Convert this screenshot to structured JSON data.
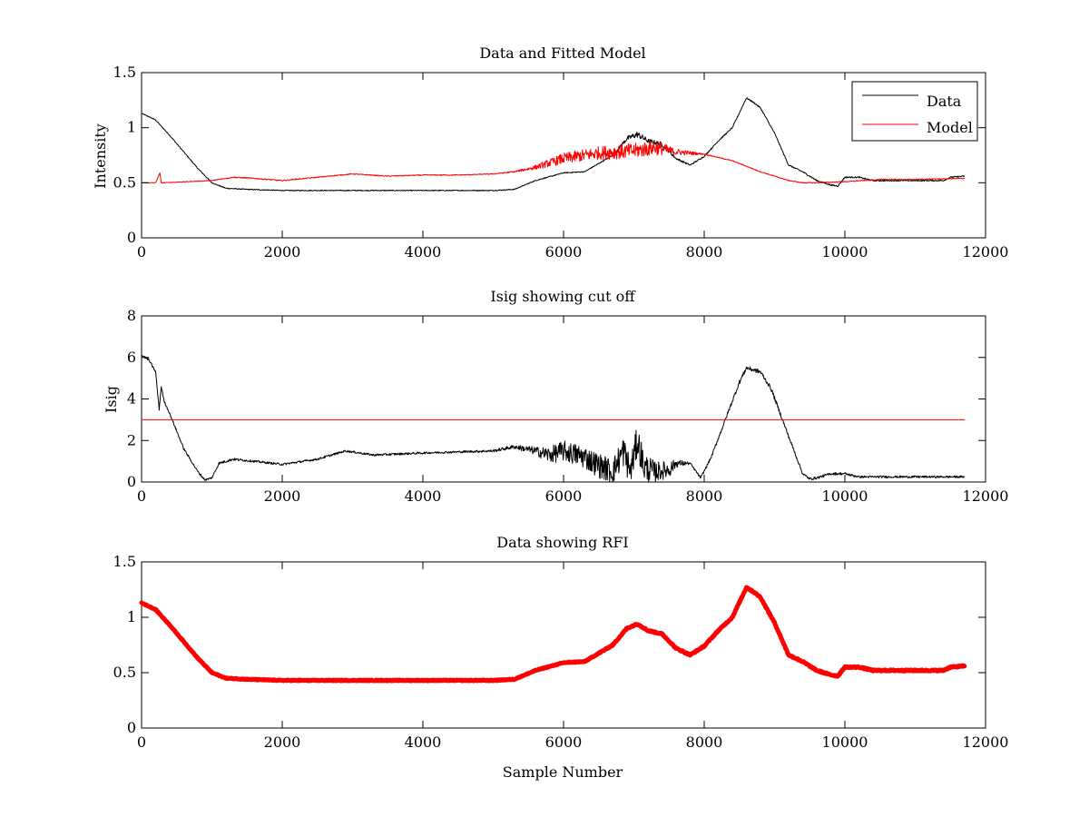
{
  "chart_data": [
    {
      "type": "line",
      "title": "Data and Fitted Model",
      "xlabel": "",
      "ylabel": "Intensity",
      "xlim": [
        0,
        12000
      ],
      "ylim": [
        0,
        1.5
      ],
      "xticks": [
        0,
        2000,
        4000,
        6000,
        8000,
        10000,
        12000
      ],
      "yticks": [
        0,
        0.5,
        1,
        1.5
      ],
      "xtick_labels": [
        "0",
        "2000",
        "4000",
        "6000",
        "8000",
        "10000",
        "12000"
      ],
      "ytick_labels": [
        "0",
        "0.5",
        "1",
        "1.5"
      ],
      "legend": {
        "placement": "top-right",
        "entries": [
          "Data",
          "Model"
        ]
      },
      "grid": false,
      "series": [
        {
          "name": "Data",
          "color": "#000000",
          "x": [
            0,
            200,
            400,
            600,
            800,
            1000,
            1200,
            1500,
            2000,
            3000,
            4000,
            5000,
            5300,
            5600,
            6000,
            6300,
            6700,
            6900,
            7050,
            7200,
            7400,
            7600,
            7800,
            8000,
            8200,
            8400,
            8600,
            8700,
            8800,
            9000,
            9200,
            9400,
            9600,
            9800,
            9900,
            10000,
            10200,
            10400,
            11000,
            11400,
            11500,
            11700
          ],
          "y": [
            1.13,
            1.07,
            0.93,
            0.78,
            0.63,
            0.5,
            0.45,
            0.44,
            0.43,
            0.43,
            0.43,
            0.43,
            0.44,
            0.52,
            0.59,
            0.6,
            0.75,
            0.9,
            0.94,
            0.88,
            0.85,
            0.72,
            0.66,
            0.74,
            0.88,
            1.0,
            1.27,
            1.23,
            1.18,
            0.95,
            0.66,
            0.6,
            0.52,
            0.48,
            0.47,
            0.55,
            0.55,
            0.52,
            0.52,
            0.52,
            0.55,
            0.56
          ],
          "noise": [
            0.004,
            0.004,
            0.004,
            0.004,
            0.004,
            0.004,
            0.004,
            0.004,
            0.004,
            0.004,
            0.004,
            0.004,
            0.004,
            0.004,
            0.004,
            0.004,
            0.006,
            0.02,
            0.03,
            0.02,
            0.02,
            0.01,
            0.006,
            0.006,
            0.006,
            0.006,
            0.006,
            0.006,
            0.006,
            0.006,
            0.006,
            0.006,
            0.006,
            0.006,
            0.006,
            0.006,
            0.006,
            0.006,
            0.006,
            0.006,
            0.006,
            0.006
          ]
        },
        {
          "name": "Model",
          "color": "#ff0000",
          "x": [
            0,
            200,
            260,
            280,
            300,
            1000,
            1300,
            1600,
            2000,
            2500,
            3000,
            3500,
            4000,
            4500,
            5000,
            5300,
            5600,
            6000,
            6500,
            7000,
            7300,
            7600,
            8000,
            8400,
            8800,
            9200,
            9400,
            9600,
            10000,
            10500,
            11000,
            11700
          ],
          "y": [
            0.5,
            0.5,
            0.59,
            0.5,
            0.5,
            0.52,
            0.55,
            0.54,
            0.52,
            0.55,
            0.58,
            0.56,
            0.57,
            0.57,
            0.58,
            0.6,
            0.64,
            0.72,
            0.77,
            0.79,
            0.82,
            0.78,
            0.76,
            0.7,
            0.6,
            0.52,
            0.5,
            0.5,
            0.51,
            0.53,
            0.53,
            0.54
          ],
          "noise": [
            0.003,
            0.003,
            0,
            0,
            0.003,
            0.003,
            0.005,
            0.005,
            0.005,
            0.004,
            0.004,
            0.004,
            0.004,
            0.004,
            0.004,
            0.006,
            0.02,
            0.05,
            0.06,
            0.07,
            0.07,
            0.03,
            0.005,
            0.004,
            0.004,
            0.004,
            0.004,
            0.004,
            0.004,
            0.004,
            0.004,
            0.004
          ]
        }
      ]
    },
    {
      "type": "line",
      "title": "Isig showing cut off",
      "xlabel": "",
      "ylabel": "Isig",
      "xlim": [
        0,
        12000
      ],
      "ylim": [
        0,
        8
      ],
      "xticks": [
        0,
        2000,
        4000,
        6000,
        8000,
        10000,
        12000
      ],
      "yticks": [
        0,
        2,
        4,
        6,
        8
      ],
      "xtick_labels": [
        "0",
        "2000",
        "4000",
        "6000",
        "8000",
        "10000",
        "12000"
      ],
      "ytick_labels": [
        "0",
        "2",
        "4",
        "6",
        "8"
      ],
      "grid": false,
      "series": [
        {
          "name": "",
          "color": "#000000",
          "x": [
            0,
            100,
            200,
            250,
            280,
            320,
            400,
            600,
            800,
            900,
            1000,
            1100,
            1300,
            1600,
            2000,
            2500,
            2900,
            3300,
            4000,
            4500,
            5000,
            5300,
            5600,
            5800,
            6000,
            6300,
            6500,
            6700,
            6850,
            6950,
            7050,
            7150,
            7300,
            7500,
            7600,
            7800,
            7950,
            8100,
            8300,
            8500,
            8600,
            8800,
            8950,
            9200,
            9400,
            9500,
            9600,
            9800,
            10000,
            10200,
            10400,
            11000,
            11700
          ],
          "y": [
            6.1,
            5.9,
            5.3,
            3.5,
            4.6,
            3.9,
            3.3,
            1.6,
            0.5,
            0.1,
            0.2,
            0.9,
            1.1,
            1.0,
            0.85,
            1.1,
            1.5,
            1.3,
            1.4,
            1.45,
            1.5,
            1.7,
            1.5,
            1.3,
            1.5,
            1.2,
            0.8,
            0.5,
            1.5,
            0.5,
            2.0,
            0.7,
            0.5,
            0.6,
            0.9,
            0.9,
            0.2,
            1.2,
            3.0,
            4.8,
            5.5,
            5.3,
            4.5,
            2.2,
            0.4,
            0.15,
            0.2,
            0.4,
            0.4,
            0.25,
            0.25,
            0.25,
            0.25
          ],
          "noise": [
            0.05,
            0.05,
            0.05,
            0.05,
            0.05,
            0.05,
            0.05,
            0.05,
            0.05,
            0.05,
            0.05,
            0.06,
            0.06,
            0.05,
            0.05,
            0.05,
            0.05,
            0.05,
            0.05,
            0.05,
            0.06,
            0.1,
            0.2,
            0.4,
            0.5,
            0.55,
            0.6,
            0.6,
            0.8,
            0.7,
            0.8,
            0.7,
            0.5,
            0.4,
            0.2,
            0.05,
            0.05,
            0.06,
            0.08,
            0.1,
            0.1,
            0.1,
            0.1,
            0.08,
            0.06,
            0.06,
            0.06,
            0.06,
            0.06,
            0.05,
            0.05,
            0.05,
            0.05
          ]
        },
        {
          "name": "",
          "color": "#ff0000",
          "x": [
            0,
            11700
          ],
          "y": [
            3,
            3
          ],
          "noise": [
            0,
            0
          ]
        }
      ]
    },
    {
      "type": "line",
      "title": "Data showing RFI",
      "xlabel": "Sample Number",
      "ylabel": "",
      "xlim": [
        0,
        12000
      ],
      "ylim": [
        0,
        1.5
      ],
      "xticks": [
        0,
        2000,
        4000,
        6000,
        8000,
        10000,
        12000
      ],
      "yticks": [
        0,
        0.5,
        1,
        1.5
      ],
      "xtick_labels": [
        "0",
        "2000",
        "4000",
        "6000",
        "8000",
        "10000",
        "12000"
      ],
      "ytick_labels": [
        "0",
        "0.5",
        "1",
        "1.5"
      ],
      "grid": false,
      "series": [
        {
          "name": "",
          "color": "#ff0000",
          "x": [
            0,
            200,
            400,
            600,
            800,
            1000,
            1200,
            1500,
            2000,
            3000,
            4000,
            5000,
            5300,
            5600,
            6000,
            6300,
            6700,
            6900,
            7050,
            7200,
            7400,
            7600,
            7800,
            8000,
            8200,
            8400,
            8600,
            8700,
            8800,
            9000,
            9200,
            9400,
            9600,
            9800,
            9900,
            10000,
            10200,
            10400,
            11000,
            11400,
            11500,
            11700
          ],
          "y": [
            1.13,
            1.07,
            0.93,
            0.78,
            0.63,
            0.5,
            0.45,
            0.44,
            0.43,
            0.43,
            0.43,
            0.43,
            0.44,
            0.52,
            0.59,
            0.6,
            0.75,
            0.9,
            0.94,
            0.88,
            0.85,
            0.72,
            0.66,
            0.74,
            0.88,
            1.0,
            1.27,
            1.23,
            1.18,
            0.95,
            0.66,
            0.6,
            0.52,
            0.48,
            0.47,
            0.55,
            0.55,
            0.52,
            0.52,
            0.52,
            0.55,
            0.56
          ],
          "noise": [
            0.004,
            0.004,
            0.004,
            0.004,
            0.004,
            0.004,
            0.004,
            0.004,
            0.004,
            0.004,
            0.004,
            0.004,
            0.004,
            0.004,
            0.004,
            0.004,
            0.006,
            0.006,
            0.006,
            0.006,
            0.006,
            0.006,
            0.006,
            0.006,
            0.006,
            0.006,
            0.006,
            0.006,
            0.006,
            0.006,
            0.006,
            0.006,
            0.006,
            0.006,
            0.006,
            0.006,
            0.006,
            0.006,
            0.006,
            0.006,
            0.006,
            0.006
          ]
        }
      ]
    }
  ]
}
